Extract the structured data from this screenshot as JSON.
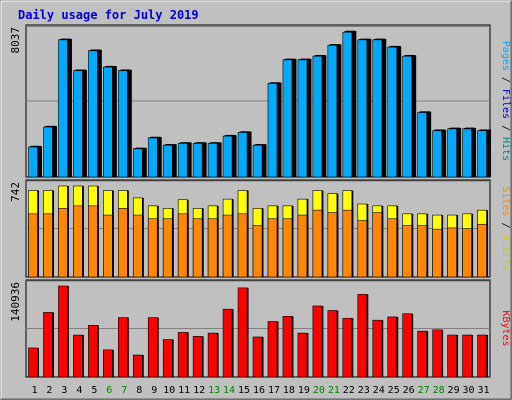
{
  "chart_data": {
    "type": "bar",
    "title": "Daily usage for July 2019",
    "days": [
      "1",
      "2",
      "3",
      "4",
      "5",
      "6",
      "7",
      "8",
      "9",
      "10",
      "11",
      "12",
      "13",
      "14",
      "15",
      "16",
      "17",
      "18",
      "19",
      "20",
      "21",
      "22",
      "23",
      "24",
      "25",
      "26",
      "27",
      "28",
      "29",
      "30",
      "31"
    ],
    "weekend_days": [
      "6",
      "7",
      "13",
      "14",
      "20",
      "21",
      "27",
      "28"
    ],
    "panels": [
      {
        "id": "top",
        "ymax_label": "8037",
        "ymax": 8037,
        "label_parts": [
          {
            "text": "Pages",
            "color": "#00aaff"
          },
          {
            "text": " / ",
            "color": "#000000"
          },
          {
            "text": "Files",
            "color": "#0000cc"
          },
          {
            "text": " / ",
            "color": "#000000"
          },
          {
            "text": "Hits",
            "color": "#008080"
          }
        ],
        "series": [
          {
            "name": "Hits",
            "color": "#008080",
            "values": [
              1700,
              2800,
              7600,
              5900,
              7000,
              6100,
              5900,
              1600,
              2200,
              1800,
              1900,
              1900,
              1900,
              2300,
              2500,
              1800,
              5200,
              6500,
              6500,
              6700,
              7300,
              8037,
              7600,
              7600,
              7200,
              6700,
              3600,
              2600,
              2700,
              2700,
              2600
            ]
          },
          {
            "name": "Files",
            "color": "#0000cc",
            "values": [
              1680,
              2780,
              7580,
              5880,
              6980,
              6080,
              5880,
              1580,
              2180,
              1780,
              1880,
              1880,
              1880,
              2280,
              2480,
              1780,
              5180,
              6480,
              6480,
              6680,
              7280,
              8000,
              7580,
              7580,
              7180,
              6680,
              3580,
              2580,
              2680,
              2680,
              2580
            ]
          },
          {
            "name": "Pages",
            "color": "#00aaff",
            "values": [
              1650,
              2750,
              7550,
              5850,
              6950,
              6050,
              5850,
              1550,
              2150,
              1750,
              1850,
              1850,
              1850,
              2250,
              2450,
              1750,
              5150,
              6450,
              6450,
              6650,
              7250,
              7970,
              7550,
              7550,
              7150,
              6650,
              3550,
              2550,
              2650,
              2650,
              2550
            ]
          }
        ]
      },
      {
        "id": "middle",
        "ymax_label": "742",
        "ymax": 742,
        "label_parts": [
          {
            "text": "Sites",
            "color": "#ff8800"
          },
          {
            "text": " / ",
            "color": "#000000"
          },
          {
            "text": "Visits",
            "color": "#cccc00"
          }
        ],
        "series": [
          {
            "name": "Visits",
            "color": "#ffff00",
            "values": [
              705,
              705,
              742,
              742,
              742,
              705,
              705,
              645,
              580,
              560,
              630,
              560,
              580,
              635,
              705,
              560,
              580,
              580,
              635,
              705,
              680,
              705,
              595,
              580,
              580,
              515,
              515,
              505,
              505,
              515,
              545
            ]
          },
          {
            "name": "Sites",
            "color": "#ff8800",
            "values": [
              515,
              515,
              560,
              580,
              580,
              505,
              560,
              505,
              475,
              475,
              515,
              475,
              475,
              505,
              515,
              420,
              475,
              475,
              505,
              545,
              525,
              545,
              460,
              525,
              475,
              420,
              420,
              390,
              400,
              395,
              430
            ]
          }
        ]
      },
      {
        "id": "bottom",
        "ymax_label": "140936",
        "ymax": 140936,
        "label_parts": [
          {
            "text": "KBytes",
            "color": "#ff0000"
          }
        ],
        "series": [
          {
            "name": "KBytes",
            "color": "#ff0000",
            "values": [
              45000,
              100000,
              140936,
              65000,
              80000,
              42000,
              92000,
              34000,
              92000,
              58000,
              69000,
              63000,
              68000,
              105000,
              138000,
              62000,
              86000,
              94000,
              68000,
              110000,
              103000,
              91000,
              128000,
              88000,
              93000,
              98000,
              71000,
              73000,
              65000,
              65000,
              65000
            ]
          }
        ]
      }
    ]
  }
}
